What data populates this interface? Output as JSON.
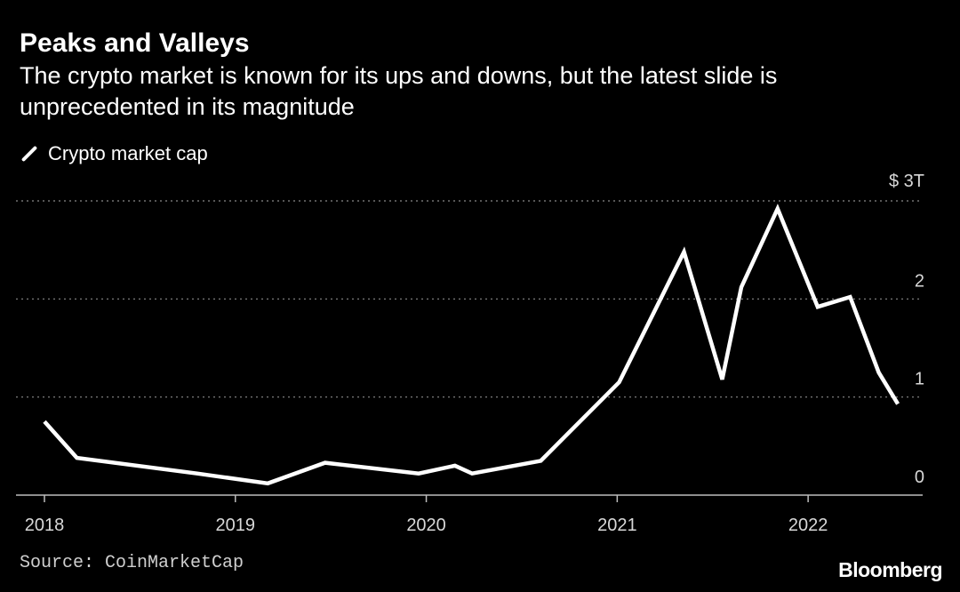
{
  "header": {
    "title": "Peaks and Valleys",
    "subtitle": "The crypto market is known for its ups and downs, but the latest slide is unprecedented in its magnitude"
  },
  "legend": {
    "label": "Crypto market cap"
  },
  "footer": {
    "source": "Source: CoinMarketCap",
    "brand": "Bloomberg"
  },
  "colors": {
    "background": "#000000",
    "line": "#ffffff",
    "grid": "#8a8a8a"
  },
  "chart_data": {
    "type": "line",
    "title": "Peaks and Valleys",
    "ylabel": "Crypto market cap",
    "yunit_label": "$ 3T",
    "ylim": [
      0,
      3
    ],
    "xlim": [
      2018.0,
      2022.6
    ],
    "y_ticks": [
      {
        "value": 0,
        "label": "0"
      },
      {
        "value": 1,
        "label": "1"
      },
      {
        "value": 2,
        "label": "2"
      },
      {
        "value": 3,
        "label": "$ 3T"
      }
    ],
    "x_ticks": [
      {
        "value": 2018,
        "label": "2018"
      },
      {
        "value": 2019,
        "label": "2019"
      },
      {
        "value": 2020,
        "label": "2020"
      },
      {
        "value": 2021,
        "label": "2021"
      },
      {
        "value": 2022,
        "label": "2022"
      }
    ],
    "series": [
      {
        "name": "Crypto market cap",
        "x": [
          2018.0,
          2018.17,
          2018.8,
          2019.17,
          2019.47,
          2019.96,
          2020.15,
          2020.24,
          2020.6,
          2021.01,
          2021.35,
          2021.55,
          2021.65,
          2021.84,
          2022.05,
          2022.22,
          2022.37,
          2022.47
        ],
        "y": [
          0.75,
          0.38,
          0.22,
          0.12,
          0.33,
          0.22,
          0.3,
          0.22,
          0.35,
          1.15,
          2.48,
          1.18,
          2.12,
          2.92,
          1.92,
          2.02,
          1.25,
          0.93
        ]
      }
    ]
  }
}
